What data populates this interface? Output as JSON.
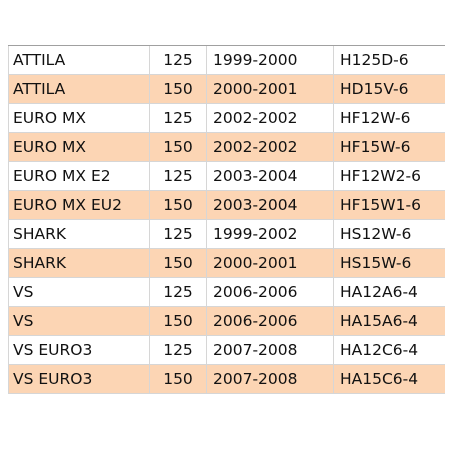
{
  "table": {
    "rows": [
      {
        "model": "ATTILA",
        "cc": "125",
        "years": "1999-2000",
        "code": "H125D-6"
      },
      {
        "model": "ATTILA",
        "cc": "150",
        "years": "2000-2001",
        "code": "HD15V-6"
      },
      {
        "model": "EURO MX",
        "cc": "125",
        "years": "2002-2002",
        "code": "HF12W-6"
      },
      {
        "model": "EURO MX",
        "cc": "150",
        "years": "2002-2002",
        "code": "HF15W-6"
      },
      {
        "model": "EURO MX E2",
        "cc": "125",
        "years": "2003-2004",
        "code": "HF12W2-6"
      },
      {
        "model": "EURO MX EU2",
        "cc": "150",
        "years": "2003-2004",
        "code": "HF15W1-6"
      },
      {
        "model": "SHARK",
        "cc": "125",
        "years": "1999-2002",
        "code": "HS12W-6"
      },
      {
        "model": "SHARK",
        "cc": "150",
        "years": "2000-2001",
        "code": "HS15W-6"
      },
      {
        "model": "VS",
        "cc": "125",
        "years": "2006-2006",
        "code": "HA12A6-4"
      },
      {
        "model": "VS",
        "cc": "150",
        "years": "2006-2006",
        "code": "HA15A6-4"
      },
      {
        "model": "VS EURO3",
        "cc": "125",
        "years": "2007-2008",
        "code": "HA12C6-4"
      },
      {
        "model": "VS EURO3",
        "cc": "150",
        "years": "2007-2008",
        "code": "HA15C6-4"
      }
    ],
    "colors": {
      "alt_row": "#fcd5b4",
      "row": "#ffffff",
      "grid": "#d6d6d6"
    }
  }
}
